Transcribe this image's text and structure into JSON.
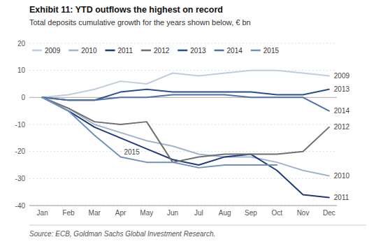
{
  "chart_data": {
    "type": "line",
    "title": "Exhibit 11: YTD outflows the highest on record",
    "subtitle": "Total deposits cumulative growth for the years shown below, € bn",
    "source": "Source: ECB, Goldman Sachs Global Investment Research.",
    "categories": [
      "Jan",
      "Feb",
      "Mar",
      "Apr",
      "May",
      "Jun",
      "Jul",
      "Aug",
      "Sep",
      "Oct",
      "Nov",
      "Dec"
    ],
    "series": [
      {
        "name": "2009",
        "color": "#c0cce0",
        "values": [
          0,
          1,
          3,
          6,
          5,
          9,
          8,
          9,
          10,
          10,
          9,
          8
        ]
      },
      {
        "name": "2010",
        "color": "#a0b4d0",
        "values": [
          0,
          -4,
          -10,
          -13,
          -16,
          -18,
          -21,
          -22,
          -22,
          -24,
          -27,
          -29
        ]
      },
      {
        "name": "2011",
        "color": "#1e3a7e",
        "values": [
          0,
          -5,
          -11,
          -15,
          -19,
          -23,
          -25,
          -22,
          -21,
          -27,
          -36,
          -37
        ]
      },
      {
        "name": "2012",
        "color": "#707070",
        "values": [
          0,
          -4,
          -9,
          -10,
          -9,
          -24,
          -22,
          -21,
          -21,
          -21,
          -20,
          -11
        ]
      },
      {
        "name": "2013",
        "color": "#2a4f90",
        "values": [
          0,
          -1,
          -1,
          2,
          3,
          2,
          2,
          2,
          2,
          1,
          1,
          3
        ]
      },
      {
        "name": "2014",
        "color": "#5070a8",
        "values": [
          0,
          -1,
          -1,
          0,
          0,
          1,
          1,
          1,
          0,
          0,
          0,
          -5
        ]
      },
      {
        "name": "2015",
        "color": "#7090c0",
        "values": [
          0,
          -5,
          -14,
          -22,
          -24,
          -24,
          -26,
          -25,
          -25,
          -25,
          null,
          null
        ]
      }
    ],
    "ylim": [
      -40,
      20
    ],
    "yticks": [
      -40,
      -30,
      -20,
      -10,
      0,
      10,
      20
    ],
    "grid": true,
    "legend": "top-left",
    "annotations": [
      {
        "text": "2009",
        "y": 8
      },
      {
        "text": "2013",
        "y": 3
      },
      {
        "text": "2014",
        "y": -5
      },
      {
        "text": "2012",
        "y": -11
      },
      {
        "text": "2010",
        "y": -29
      },
      {
        "text": "2011",
        "y": -37
      },
      {
        "text": "2015",
        "x": "Apr",
        "y": -22
      }
    ]
  }
}
